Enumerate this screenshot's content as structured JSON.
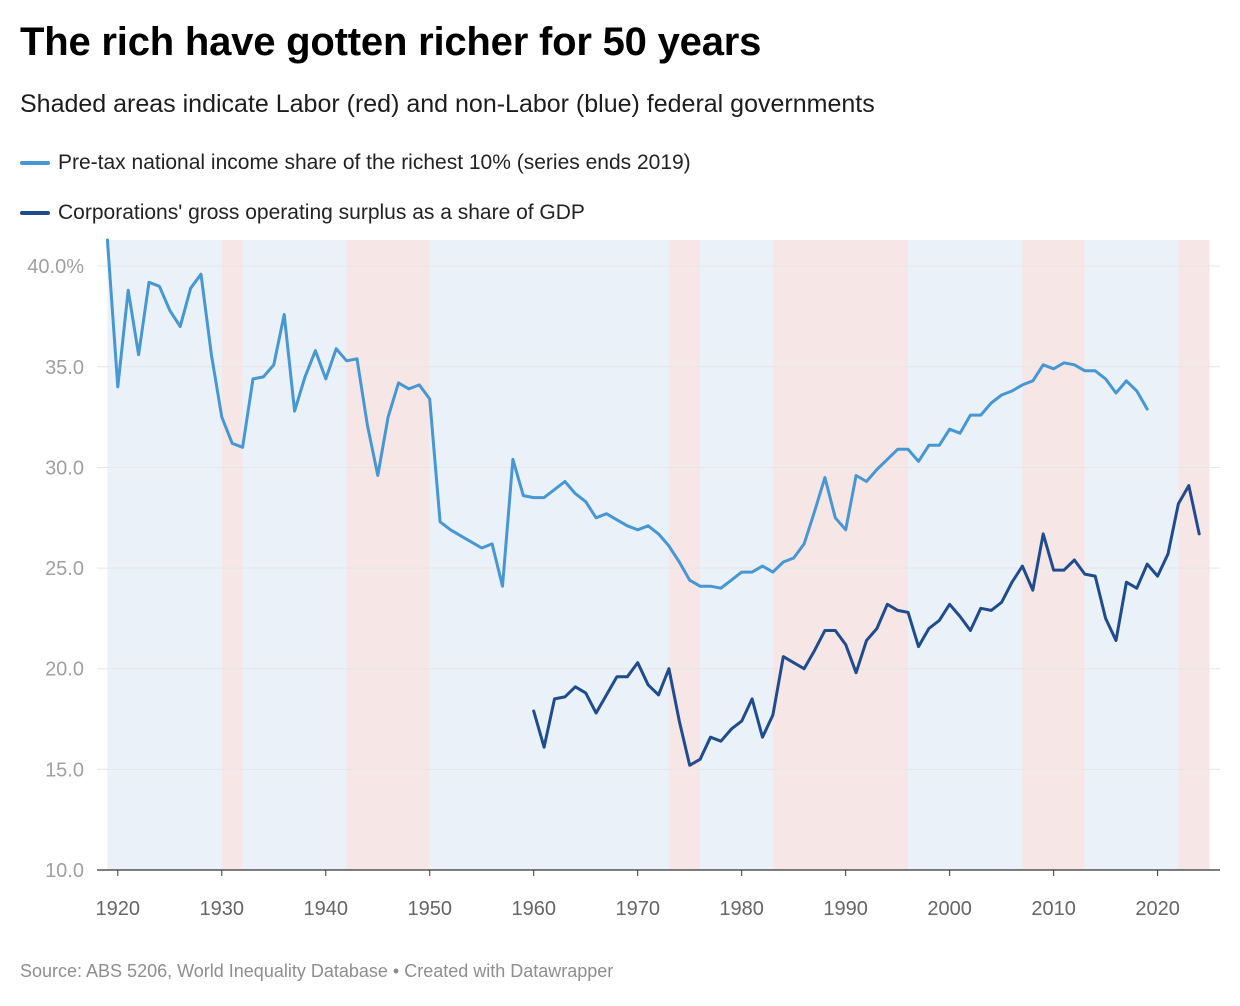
{
  "title": "The rich have gotten richer for 50 years",
  "subtitle": "Shaded areas indicate Labor (red) and non-Labor (blue) federal governments",
  "source": "Source: ABS 5206, World Inequality Database • Created with Datawrapper",
  "colors": {
    "series_top10": "#4697d3",
    "series_surplus": "#1f4c8e",
    "shade_labor": "#f6e6e6",
    "shade_nonlabor": "#eaf1f8",
    "gridline": "#e6e6e6",
    "tick_label": "#a0a0a0"
  },
  "chart_data": {
    "type": "line",
    "title": "The rich have gotten richer for 50 years",
    "subtitle": "Shaded areas indicate Labor (red) and non-Labor (blue) federal governments",
    "xlabel": "",
    "ylabel": "",
    "xlim": [
      1918,
      2026
    ],
    "ylim": [
      10,
      41.3
    ],
    "y_ticks": [
      10,
      15,
      20,
      25,
      30,
      35,
      40
    ],
    "y_tick_labels": [
      "10.0",
      "15.0",
      "20.0",
      "25.0",
      "30.0",
      "35.0",
      "40.0%"
    ],
    "x_ticks": [
      1920,
      1930,
      1940,
      1950,
      1960,
      1970,
      1980,
      1990,
      2000,
      2010,
      2020
    ],
    "x_tick_labels": [
      "1920",
      "1930",
      "1940",
      "1950",
      "1960",
      "1970",
      "1980",
      "1990",
      "2000",
      "2010",
      "2020"
    ],
    "grid": "horizontal",
    "legend_position": "top-left",
    "shaded_periods": [
      {
        "party": "non-Labor",
        "start": 1919,
        "end": 1930
      },
      {
        "party": "Labor",
        "start": 1930,
        "end": 1932
      },
      {
        "party": "non-Labor",
        "start": 1932,
        "end": 1942
      },
      {
        "party": "Labor",
        "start": 1942,
        "end": 1950
      },
      {
        "party": "non-Labor",
        "start": 1950,
        "end": 1973
      },
      {
        "party": "Labor",
        "start": 1973,
        "end": 1976
      },
      {
        "party": "non-Labor",
        "start": 1976,
        "end": 1983
      },
      {
        "party": "Labor",
        "start": 1983,
        "end": 1996
      },
      {
        "party": "non-Labor",
        "start": 1996,
        "end": 2007
      },
      {
        "party": "Labor",
        "start": 2007,
        "end": 2013
      },
      {
        "party": "non-Labor",
        "start": 2013,
        "end": 2022
      },
      {
        "party": "Labor",
        "start": 2022,
        "end": 2025
      }
    ],
    "series": [
      {
        "name": "Pre-tax national income share of the richest 10% (series ends 2019)",
        "color": "#4697d3",
        "x": [
          1919,
          1920,
          1921,
          1922,
          1923,
          1924,
          1925,
          1926,
          1927,
          1928,
          1929,
          1930,
          1931,
          1932,
          1933,
          1934,
          1935,
          1936,
          1937,
          1938,
          1939,
          1940,
          1941,
          1942,
          1943,
          1944,
          1945,
          1946,
          1947,
          1948,
          1949,
          1950,
          1951,
          1952,
          1953,
          1954,
          1955,
          1956,
          1957,
          1958,
          1959,
          1960,
          1961,
          1962,
          1963,
          1964,
          1965,
          1966,
          1967,
          1968,
          1969,
          1970,
          1971,
          1972,
          1973,
          1974,
          1975,
          1976,
          1977,
          1978,
          1979,
          1980,
          1981,
          1982,
          1983,
          1984,
          1985,
          1986,
          1987,
          1988,
          1989,
          1990,
          1991,
          1992,
          1993,
          1994,
          1995,
          1996,
          1997,
          1998,
          1999,
          2000,
          2001,
          2002,
          2003,
          2004,
          2005,
          2006,
          2007,
          2008,
          2009,
          2010,
          2011,
          2012,
          2013,
          2014,
          2015,
          2016,
          2017,
          2018,
          2019
        ],
        "values": [
          41.3,
          34.0,
          38.8,
          35.6,
          39.2,
          39.0,
          37.8,
          37.0,
          38.9,
          39.6,
          35.6,
          32.5,
          31.2,
          31.0,
          34.4,
          34.5,
          35.1,
          37.6,
          32.8,
          34.5,
          35.8,
          34.4,
          35.9,
          35.3,
          35.4,
          32.1,
          29.6,
          32.5,
          34.2,
          33.9,
          34.1,
          33.4,
          27.3,
          26.9,
          26.6,
          26.3,
          26.0,
          26.2,
          24.1,
          30.4,
          28.6,
          28.5,
          28.5,
          28.9,
          29.3,
          28.7,
          28.3,
          27.5,
          27.7,
          27.4,
          27.1,
          26.9,
          27.1,
          26.7,
          26.1,
          25.3,
          24.4,
          24.1,
          24.1,
          24.0,
          24.4,
          24.8,
          24.8,
          25.1,
          24.8,
          25.3,
          25.5,
          26.2,
          27.8,
          29.5,
          27.5,
          26.9,
          29.6,
          29.3,
          29.9,
          30.4,
          30.9,
          30.9,
          30.3,
          31.1,
          31.1,
          31.9,
          31.7,
          32.6,
          32.6,
          33.2,
          33.6,
          33.8,
          34.1,
          34.3,
          35.1,
          34.9,
          35.2,
          35.1,
          34.8,
          34.8,
          34.4,
          33.7,
          34.3,
          33.8,
          32.9
        ]
      },
      {
        "name": "Corporations' gross operating surplus as a share of GDP",
        "color": "#1f4c8e",
        "x": [
          1960,
          1961,
          1962,
          1963,
          1964,
          1965,
          1966,
          1967,
          1968,
          1969,
          1970,
          1971,
          1972,
          1973,
          1974,
          1975,
          1976,
          1977,
          1978,
          1979,
          1980,
          1981,
          1982,
          1983,
          1984,
          1985,
          1986,
          1987,
          1988,
          1989,
          1990,
          1991,
          1992,
          1993,
          1994,
          1995,
          1996,
          1997,
          1998,
          1999,
          2000,
          2001,
          2002,
          2003,
          2004,
          2005,
          2006,
          2007,
          2008,
          2009,
          2010,
          2011,
          2012,
          2013,
          2014,
          2015,
          2016,
          2017,
          2018,
          2019,
          2020,
          2021,
          2022,
          2023,
          2024
        ],
        "values": [
          17.9,
          16.1,
          18.5,
          18.6,
          19.1,
          18.8,
          17.8,
          18.7,
          19.6,
          19.6,
          20.3,
          19.2,
          18.7,
          20.0,
          17.4,
          15.2,
          15.5,
          16.6,
          16.4,
          17.0,
          17.4,
          18.5,
          16.6,
          17.7,
          20.6,
          20.3,
          20.0,
          20.9,
          21.9,
          21.9,
          21.2,
          19.8,
          21.4,
          22.0,
          23.2,
          22.9,
          22.8,
          21.1,
          22.0,
          22.4,
          23.2,
          22.6,
          21.9,
          23.0,
          22.9,
          23.3,
          24.3,
          25.1,
          23.9,
          26.7,
          24.9,
          24.9,
          25.4,
          24.7,
          24.6,
          22.5,
          21.4,
          24.3,
          24.0,
          25.2,
          24.6,
          25.7,
          28.2,
          29.1,
          26.7
        ]
      }
    ]
  }
}
